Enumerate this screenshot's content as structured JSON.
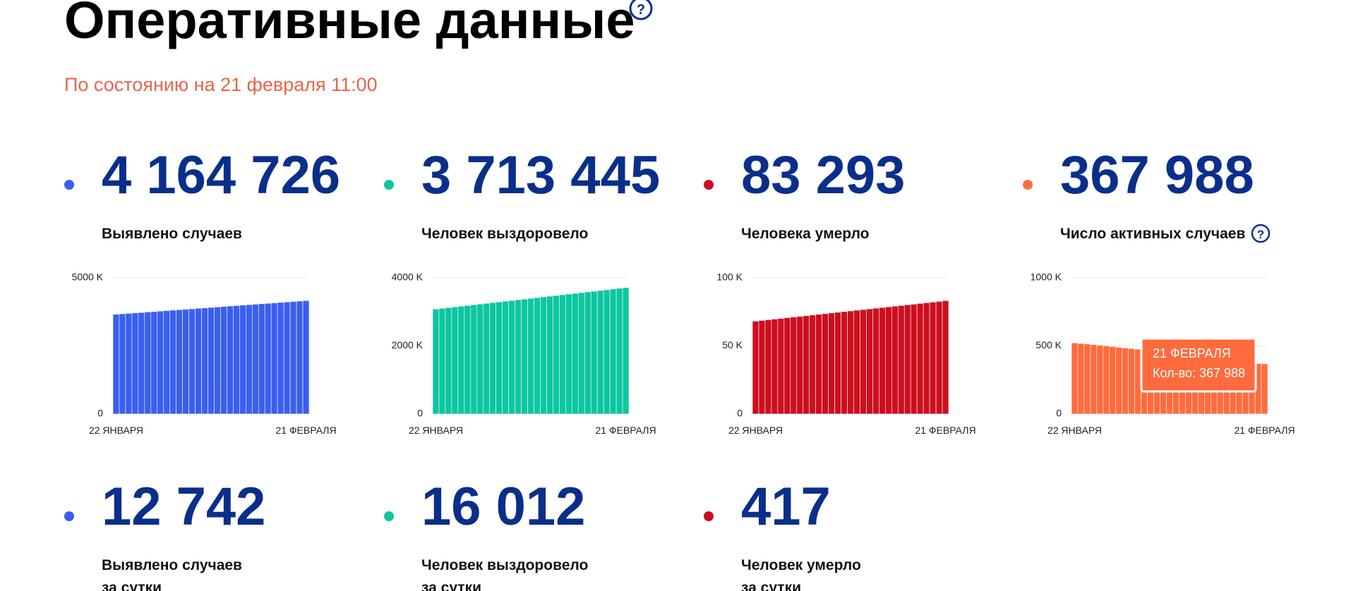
{
  "header": {
    "title": "Оперативные данные",
    "subtitle": "По состоянию на 21 февраля 11:00"
  },
  "stats": [
    {
      "value": "4 164 726",
      "label": [
        "Выявлено случаев"
      ],
      "color": "#3a5ff0"
    },
    {
      "value": "3 713 445",
      "label": [
        "Человек выздоровело"
      ],
      "color": "#0cc6a0"
    },
    {
      "value": "83 293",
      "label": [
        "Человека умерло"
      ],
      "color": "#cc0f1e"
    },
    {
      "value": "367 988",
      "label": [
        "Число активных случаев"
      ],
      "color": "#ff6b3d"
    },
    {
      "value": "12 742",
      "label": [
        "Выявлено случаев",
        "за сутки"
      ],
      "color": "#3a5ff0"
    },
    {
      "value": "16 012",
      "label": [
        "Человек выздоровело",
        "за сутки"
      ],
      "color": "#0cc6a0"
    },
    {
      "value": "417",
      "label": [
        "Человек умерло",
        "за сутки"
      ],
      "color": "#cc0f1e"
    }
  ],
  "chart_data": [
    {
      "type": "bar",
      "color": "#3a5ff0",
      "grid": true,
      "ylim": [
        0,
        5000000
      ],
      "yticks": [
        0,
        {
          "value": 5000000,
          "label": "5000 K"
        }
      ],
      "categories": [
        "22 ЯНВАРЯ",
        null,
        null,
        null,
        null,
        null,
        null,
        null,
        null,
        null,
        null,
        null,
        null,
        null,
        null,
        null,
        null,
        null,
        null,
        null,
        null,
        null,
        null,
        null,
        null,
        null,
        null,
        null,
        null,
        null,
        "21 ФЕВРАЛЯ"
      ],
      "values": [
        3662000,
        3678750,
        3695500,
        3712250,
        3729000,
        3745750,
        3762500,
        3779250,
        3796000,
        3812750,
        3829500,
        3846250,
        3863000,
        3879750,
        3896500,
        3913250,
        3930000,
        3946750,
        3963500,
        3980250,
        3997000,
        4013750,
        4030500,
        4047250,
        4064000,
        4080750,
        4097500,
        4114250,
        4131000,
        4147750,
        4164726
      ]
    },
    {
      "type": "bar",
      "color": "#0cc6a0",
      "grid": true,
      "ylim": [
        0,
        4000000
      ],
      "yticks": [
        0,
        {
          "value": 2000000,
          "label": "2000 K"
        },
        {
          "value": 4000000,
          "label": "4000 K"
        }
      ],
      "categories": [
        "22 ЯНВАРЯ",
        null,
        null,
        null,
        null,
        null,
        null,
        null,
        null,
        null,
        null,
        null,
        null,
        null,
        null,
        null,
        null,
        null,
        null,
        null,
        null,
        null,
        null,
        null,
        null,
        null,
        null,
        null,
        null,
        null,
        "21 ФЕВРАЛЯ"
      ],
      "values": [
        3083000,
        3104000,
        3125000,
        3146000,
        3167000,
        3188000,
        3209000,
        3230000,
        3251000,
        3272000,
        3293000,
        3314000,
        3335000,
        3356000,
        3377000,
        3398000,
        3419000,
        3440000,
        3461000,
        3482000,
        3503000,
        3524000,
        3545000,
        3566000,
        3587000,
        3608000,
        3629000,
        3650000,
        3671000,
        3692000,
        3713445
      ]
    },
    {
      "type": "bar",
      "color": "#cc0f1e",
      "grid": true,
      "ylim": [
        0,
        100000
      ],
      "yticks": [
        0,
        {
          "value": 50000,
          "label": "50 K"
        },
        {
          "value": 100000,
          "label": "100 K"
        }
      ],
      "categories": [
        "22 ЯНВАРЯ",
        null,
        null,
        null,
        null,
        null,
        null,
        null,
        null,
        null,
        null,
        null,
        null,
        null,
        null,
        null,
        null,
        null,
        null,
        null,
        null,
        null,
        null,
        null,
        null,
        null,
        null,
        null,
        null,
        null,
        "21 ФЕВРАЛЯ"
      ],
      "values": [
        68200,
        68700,
        69200,
        69700,
        70200,
        70700,
        71200,
        71700,
        72200,
        72700,
        73200,
        73700,
        74200,
        74700,
        75200,
        75700,
        76200,
        76700,
        77200,
        77700,
        78200,
        78700,
        79200,
        79700,
        80200,
        80700,
        81200,
        81700,
        82200,
        82700,
        83293
      ]
    },
    {
      "type": "bar",
      "color": "#ff6b3d",
      "grid": true,
      "ylim": [
        0,
        1000000
      ],
      "yticks": [
        0,
        {
          "value": 500000,
          "label": "500 K"
        },
        {
          "value": 1000000,
          "label": "1000 K"
        }
      ],
      "categories": [
        "22 ЯНВАРЯ",
        null,
        null,
        null,
        null,
        null,
        null,
        null,
        null,
        null,
        null,
        null,
        null,
        null,
        null,
        null,
        null,
        null,
        null,
        null,
        null,
        null,
        null,
        null,
        null,
        null,
        null,
        null,
        null,
        null,
        "21 ФЕВРАЛЯ"
      ],
      "values": [
        522000,
        518000,
        514000,
        510000,
        505000,
        500000,
        495000,
        490000,
        485000,
        480000,
        476000,
        470000,
        464000,
        458000,
        452000,
        446000,
        440000,
        434000,
        428000,
        422000,
        416000,
        410000,
        404000,
        399000,
        394000,
        389000,
        384000,
        379000,
        375000,
        371000,
        367988
      ]
    }
  ],
  "tooltip": {
    "title": "21 ФЕВРАЛЯ",
    "text": "Кол-во: 367 988"
  }
}
